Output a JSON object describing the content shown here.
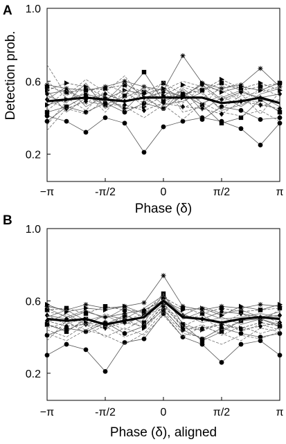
{
  "figure": {
    "background": "#ffffff",
    "ink": "#000000",
    "trace_color": "#555555"
  },
  "chart_data": [
    {
      "type": "line",
      "panel": "A",
      "xlabel": "Phase (δ)",
      "ylabel": "Detection prob.",
      "xlim": [
        -3.1416,
        3.1416
      ],
      "ylim": [
        0.05,
        1.0
      ],
      "x": [
        -3.1416,
        -2.618,
        -2.0944,
        -1.5708,
        -1.0472,
        -0.5236,
        0,
        0.5236,
        1.0472,
        1.5708,
        2.0944,
        2.618,
        3.1416
      ],
      "xticks": [
        -3.1416,
        -1.5708,
        0,
        1.5708,
        3.1416
      ],
      "xtick_labels": [
        "−π",
        "-π/2",
        "0",
        "π/2",
        "π"
      ],
      "yticks": [
        0.2,
        0.6,
        1.0
      ],
      "ytick_labels": [
        "0.2",
        "0.6",
        "1.0"
      ],
      "grid": false,
      "mean_series": {
        "values": [
          0.49,
          0.5,
          0.51,
          0.5,
          0.49,
          0.51,
          0.51,
          0.51,
          0.51,
          0.48,
          0.49,
          0.51,
          0.48
        ]
      },
      "series": [
        {
          "marker": "dot",
          "style": "solid",
          "values": [
            0.41,
            0.38,
            0.32,
            0.4,
            0.37,
            0.21,
            0.35,
            0.38,
            0.4,
            0.38,
            0.34,
            0.25,
            0.37
          ]
        },
        {
          "marker": "square",
          "style": "solid",
          "values": [
            0.43,
            0.46,
            0.52,
            0.47,
            0.52,
            0.65,
            0.49,
            0.53,
            0.47,
            0.37,
            0.4,
            0.5,
            0.43
          ]
        },
        {
          "marker": "star",
          "style": "solid",
          "values": [
            0.58,
            0.56,
            0.55,
            0.57,
            0.6,
            0.57,
            0.55,
            0.74,
            0.59,
            0.56,
            0.58,
            0.67,
            0.57
          ]
        },
        {
          "marker": "diamond",
          "style": "solid",
          "values": [
            0.53,
            0.55,
            0.5,
            0.53,
            0.49,
            0.51,
            0.54,
            0.52,
            0.58,
            0.5,
            0.54,
            0.51,
            0.53
          ]
        },
        {
          "marker": "tri",
          "style": "solid",
          "values": [
            0.47,
            0.5,
            0.53,
            0.5,
            0.55,
            0.53,
            0.56,
            0.51,
            0.59,
            0.54,
            0.57,
            0.55,
            0.59
          ]
        },
        {
          "marker": "tri",
          "style": "dashed",
          "values": [
            0.55,
            0.59,
            0.57,
            0.51,
            0.45,
            0.46,
            0.52,
            0.58,
            0.55,
            0.61,
            0.56,
            0.59,
            0.55
          ]
        },
        {
          "marker": "dot",
          "style": "solid",
          "values": [
            0.38,
            0.46,
            0.43,
            0.48,
            0.43,
            0.48,
            0.45,
            0.52,
            0.39,
            0.46,
            0.44,
            0.39,
            0.4
          ]
        },
        {
          "marker": "square",
          "style": "dashed",
          "values": [
            0.57,
            0.54,
            0.55,
            0.56,
            0.58,
            0.54,
            0.59,
            0.53,
            0.55,
            0.59,
            0.55,
            0.57,
            0.59
          ]
        },
        {
          "marker": "diamond",
          "style": "dashed",
          "values": [
            0.5,
            0.45,
            0.49,
            0.47,
            0.47,
            0.44,
            0.48,
            0.46,
            0.45,
            0.42,
            0.49,
            0.47,
            0.45
          ]
        },
        {
          "marker": "none",
          "style": "dashed",
          "values": [
            0.69,
            0.52,
            0.61,
            0.54,
            0.63,
            0.49,
            0.55,
            0.6,
            0.57,
            0.55,
            0.49,
            0.56,
            0.52
          ]
        },
        {
          "marker": "none",
          "style": "dashed",
          "values": [
            0.33,
            0.45,
            0.42,
            0.5,
            0.46,
            0.4,
            0.47,
            0.39,
            0.48,
            0.43,
            0.41,
            0.44,
            0.38
          ]
        },
        {
          "marker": "none",
          "style": "solid",
          "values": [
            0.52,
            0.48,
            0.59,
            0.45,
            0.51,
            0.56,
            0.47,
            0.49,
            0.54,
            0.44,
            0.47,
            0.52,
            0.46
          ]
        },
        {
          "marker": "none",
          "style": "dashed",
          "values": [
            0.46,
            0.55,
            0.47,
            0.58,
            0.54,
            0.48,
            0.6,
            0.45,
            0.51,
            0.56,
            0.59,
            0.46,
            0.5
          ]
        },
        {
          "marker": "none",
          "style": "solid",
          "values": [
            0.55,
            0.43,
            0.51,
            0.49,
            0.59,
            0.52,
            0.44,
            0.56,
            0.48,
            0.52,
            0.46,
            0.53,
            0.56
          ]
        },
        {
          "marker": "none",
          "style": "dashed",
          "values": [
            0.6,
            0.51,
            0.44,
            0.55,
            0.48,
            0.57,
            0.53,
            0.48,
            0.57,
            0.49,
            0.53,
            0.42,
            0.54
          ]
        },
        {
          "marker": "none",
          "style": "dashed",
          "values": [
            0.36,
            0.49,
            0.54,
            0.43,
            0.55,
            0.46,
            0.58,
            0.43,
            0.46,
            0.58,
            0.5,
            0.48,
            0.44
          ]
        },
        {
          "marker": "none",
          "style": "solid",
          "values": [
            0.5,
            0.57,
            0.46,
            0.52,
            0.44,
            0.55,
            0.5,
            0.55,
            0.44,
            0.51,
            0.55,
            0.5,
            0.48
          ]
        },
        {
          "marker": "none",
          "style": "dashed",
          "values": [
            0.44,
            0.52,
            0.58,
            0.46,
            0.57,
            0.5,
            0.46,
            0.57,
            0.53,
            0.45,
            0.52,
            0.54,
            0.57
          ]
        }
      ]
    },
    {
      "type": "line",
      "panel": "B",
      "xlabel": "Phase (δ), aligned",
      "ylabel": "",
      "xlim": [
        -3.1416,
        3.1416
      ],
      "ylim": [
        0.05,
        1.0
      ],
      "x": [
        -3.1416,
        -2.618,
        -2.0944,
        -1.5708,
        -1.0472,
        -0.5236,
        0,
        0.5236,
        1.0472,
        1.5708,
        2.0944,
        2.618,
        3.1416
      ],
      "xticks": [
        -3.1416,
        -1.5708,
        0,
        1.5708,
        3.1416
      ],
      "xtick_labels": [
        "−π",
        "-π/2",
        "0",
        "π/2",
        "π"
      ],
      "yticks": [
        0.2,
        0.6,
        1.0
      ],
      "ytick_labels": [
        "0.2",
        "0.6",
        "1.0"
      ],
      "grid": false,
      "mean_series": {
        "values": [
          0.5,
          0.49,
          0.5,
          0.47,
          0.49,
          0.51,
          0.6,
          0.51,
          0.5,
          0.48,
          0.5,
          0.51,
          0.5
        ]
      },
      "series": [
        {
          "marker": "dot",
          "style": "solid",
          "values": [
            0.3,
            0.36,
            0.33,
            0.21,
            0.37,
            0.39,
            0.53,
            0.4,
            0.36,
            0.26,
            0.36,
            0.38,
            0.3
          ]
        },
        {
          "marker": "square",
          "style": "solid",
          "values": [
            0.47,
            0.43,
            0.5,
            0.47,
            0.52,
            0.48,
            0.64,
            0.47,
            0.38,
            0.43,
            0.49,
            0.5,
            0.46
          ]
        },
        {
          "marker": "star",
          "style": "solid",
          "values": [
            0.57,
            0.55,
            0.58,
            0.56,
            0.57,
            0.59,
            0.74,
            0.57,
            0.55,
            0.57,
            0.56,
            0.58,
            0.57
          ]
        },
        {
          "marker": "diamond",
          "style": "solid",
          "values": [
            0.52,
            0.5,
            0.54,
            0.51,
            0.53,
            0.55,
            0.6,
            0.52,
            0.5,
            0.54,
            0.53,
            0.51,
            0.52
          ]
        },
        {
          "marker": "tri",
          "style": "solid",
          "values": [
            0.58,
            0.54,
            0.56,
            0.55,
            0.57,
            0.53,
            0.6,
            0.55,
            0.56,
            0.52,
            0.57,
            0.55,
            0.58
          ]
        },
        {
          "marker": "tri",
          "style": "dashed",
          "values": [
            0.47,
            0.44,
            0.48,
            0.46,
            0.5,
            0.45,
            0.58,
            0.45,
            0.44,
            0.47,
            0.45,
            0.48,
            0.46
          ]
        },
        {
          "marker": "dot",
          "style": "solid",
          "values": [
            0.41,
            0.45,
            0.43,
            0.48,
            0.42,
            0.46,
            0.55,
            0.44,
            0.39,
            0.45,
            0.42,
            0.4,
            0.42
          ]
        },
        {
          "marker": "square",
          "style": "dashed",
          "values": [
            0.55,
            0.56,
            0.53,
            0.57,
            0.55,
            0.54,
            0.62,
            0.56,
            0.53,
            0.56,
            0.54,
            0.55,
            0.56
          ]
        },
        {
          "marker": "diamond",
          "style": "dashed",
          "values": [
            0.49,
            0.46,
            0.47,
            0.45,
            0.48,
            0.46,
            0.57,
            0.46,
            0.45,
            0.47,
            0.44,
            0.46,
            0.48
          ]
        },
        {
          "marker": "none",
          "style": "dashed",
          "values": [
            0.54,
            0.52,
            0.46,
            0.53,
            0.49,
            0.53,
            0.64,
            0.5,
            0.52,
            0.47,
            0.53,
            0.49,
            0.55
          ]
        },
        {
          "marker": "none",
          "style": "dashed",
          "values": [
            0.44,
            0.4,
            0.47,
            0.4,
            0.45,
            0.41,
            0.52,
            0.4,
            0.46,
            0.42,
            0.38,
            0.45,
            0.43
          ]
        },
        {
          "marker": "none",
          "style": "solid",
          "values": [
            0.51,
            0.55,
            0.49,
            0.52,
            0.5,
            0.56,
            0.63,
            0.5,
            0.54,
            0.5,
            0.51,
            0.53,
            0.51
          ]
        },
        {
          "marker": "none",
          "style": "dashed",
          "values": [
            0.38,
            0.49,
            0.42,
            0.46,
            0.4,
            0.44,
            0.56,
            0.43,
            0.47,
            0.41,
            0.46,
            0.42,
            0.45
          ]
        },
        {
          "marker": "none",
          "style": "solid",
          "values": [
            0.56,
            0.51,
            0.55,
            0.5,
            0.56,
            0.51,
            0.61,
            0.52,
            0.57,
            0.53,
            0.55,
            0.51,
            0.54
          ]
        },
        {
          "marker": "none",
          "style": "dashed",
          "values": [
            0.45,
            0.48,
            0.44,
            0.49,
            0.44,
            0.5,
            0.58,
            0.48,
            0.43,
            0.49,
            0.43,
            0.47,
            0.44
          ]
        },
        {
          "marker": "none",
          "style": "dashed",
          "values": [
            0.52,
            0.47,
            0.51,
            0.44,
            0.53,
            0.47,
            0.59,
            0.46,
            0.51,
            0.44,
            0.49,
            0.52,
            0.48
          ]
        },
        {
          "marker": "none",
          "style": "solid",
          "values": [
            0.48,
            0.53,
            0.47,
            0.52,
            0.47,
            0.52,
            0.61,
            0.53,
            0.48,
            0.51,
            0.47,
            0.5,
            0.47
          ]
        },
        {
          "marker": "none",
          "style": "dashed",
          "values": [
            0.42,
            0.38,
            0.44,
            0.41,
            0.36,
            0.42,
            0.54,
            0.42,
            0.4,
            0.36,
            0.41,
            0.39,
            0.43
          ]
        }
      ]
    }
  ]
}
